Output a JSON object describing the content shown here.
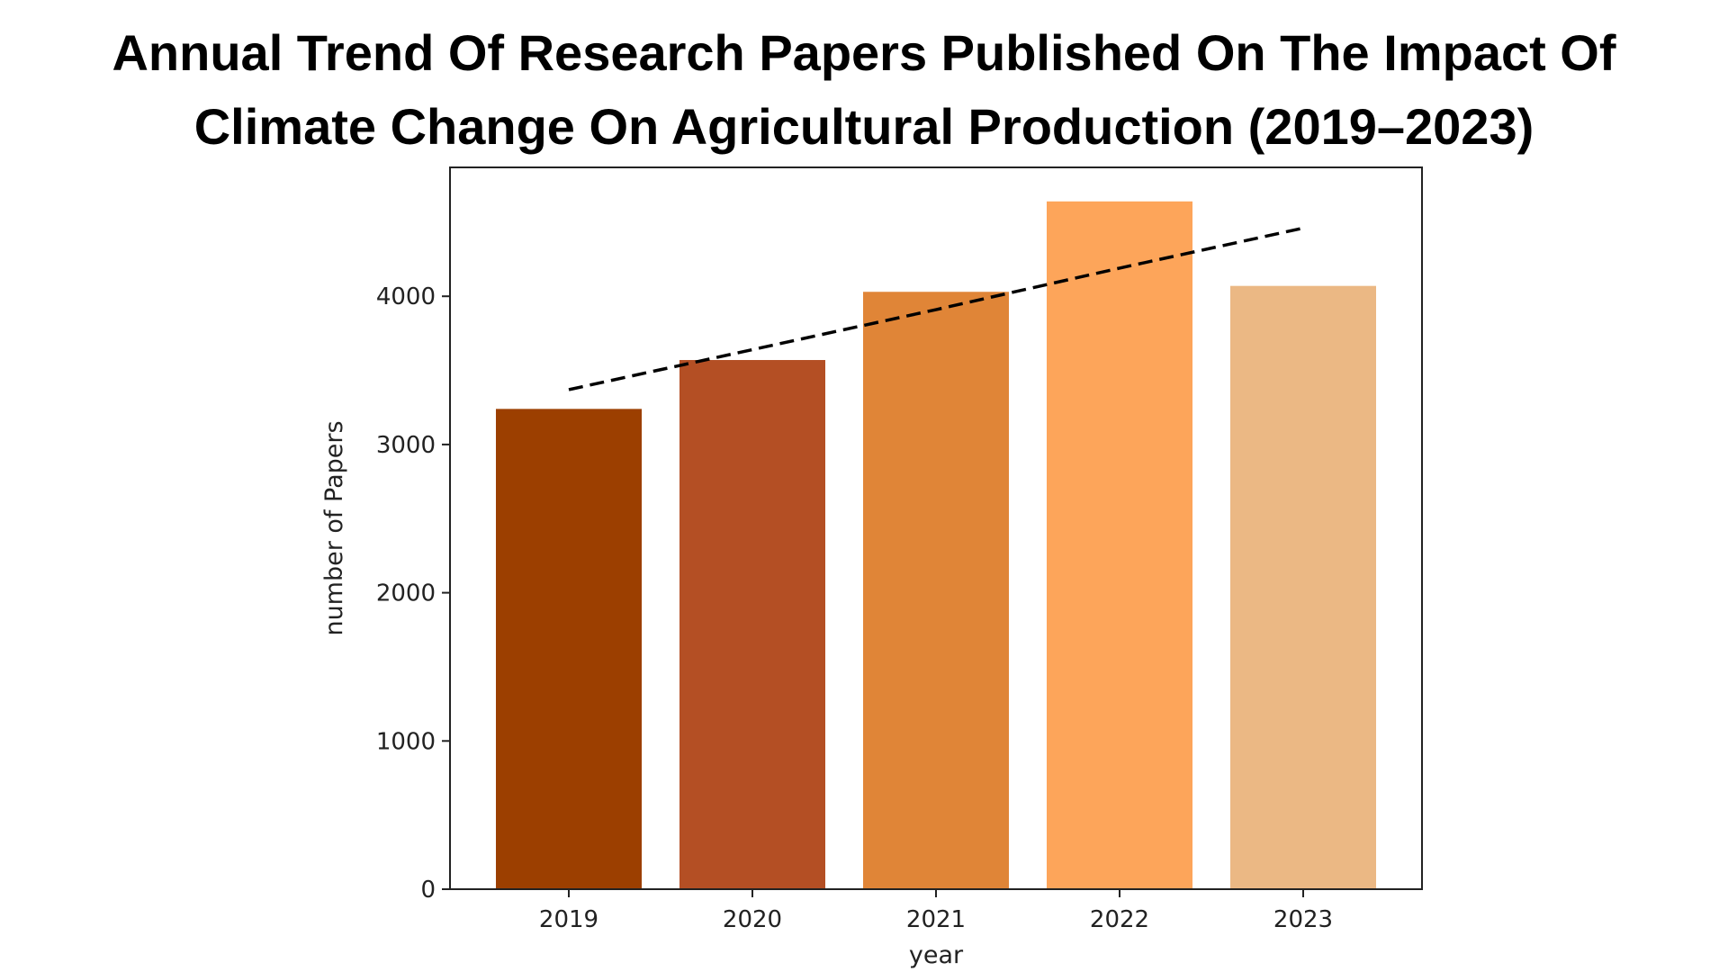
{
  "title": {
    "line1": "Annual Trend Of Research Papers Published On The Impact Of",
    "line2": "Climate Change On Agricultural Production (2019–2023)"
  },
  "chart_data": {
    "type": "bar",
    "categories": [
      "2019",
      "2020",
      "2021",
      "2022",
      "2023"
    ],
    "values": [
      3240,
      3570,
      4030,
      4640,
      4070
    ],
    "colors": [
      "#9c3f00",
      "#b44f24",
      "#e08537",
      "#fda55a",
      "#ebb884"
    ],
    "trendline": {
      "style": "dashed",
      "color": "#000000",
      "values": [
        3370,
        3640,
        3910,
        4190,
        4460
      ]
    },
    "xlabel": "year",
    "ylabel": "number of Papers",
    "ylim": [
      0,
      4650
    ],
    "yticks": [
      0,
      1000,
      2000,
      3000,
      4000
    ],
    "grid": false,
    "legend": false
  }
}
